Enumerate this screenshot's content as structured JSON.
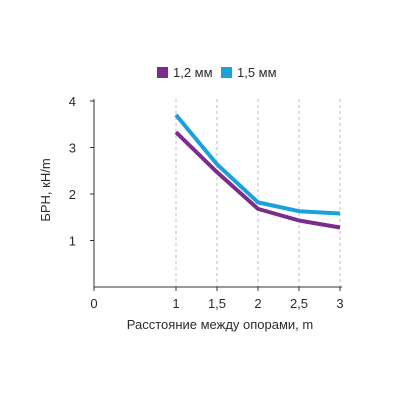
{
  "chart_data": {
    "type": "line",
    "xlabel": "Расстояние между опорами, m",
    "ylabel": "БРН, кН/m",
    "xlim": [
      0,
      3
    ],
    "ylim": [
      0,
      4
    ],
    "x_ticks": [
      0,
      1,
      1.5,
      2,
      2.5,
      3
    ],
    "x_tick_labels": [
      "0",
      "1",
      "1,5",
      "2",
      "2,5",
      "3"
    ],
    "y_ticks": [
      1,
      2,
      3,
      4
    ],
    "y_tick_labels": [
      "1",
      "2",
      "3",
      "4"
    ],
    "grid": "vertical dashed",
    "legend_position": "top-center",
    "x": [
      1,
      1.5,
      2,
      2.5,
      3
    ],
    "series": [
      {
        "name": "1,2 мм",
        "color": "#7b2d8e",
        "values": [
          3.33,
          2.47,
          1.68,
          1.43,
          1.28
        ]
      },
      {
        "name": "1,5 мм",
        "color": "#1aa1dc",
        "values": [
          3.7,
          2.64,
          1.82,
          1.63,
          1.58
        ]
      }
    ]
  }
}
